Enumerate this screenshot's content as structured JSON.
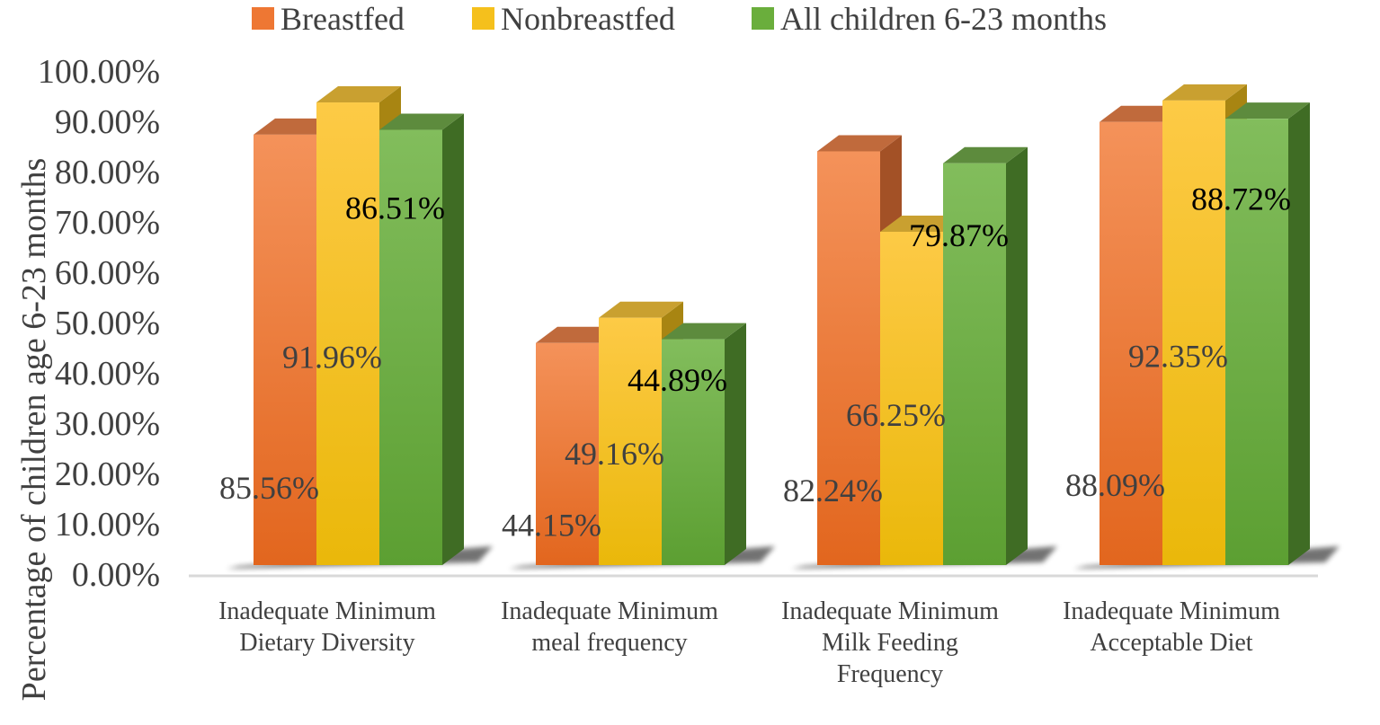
{
  "chart_data": {
    "type": "bar",
    "style": "3d-clustered-column",
    "title": "",
    "xlabel": "",
    "ylabel": "Percentage of children age 6-23 months",
    "ylim": [
      0,
      100
    ],
    "y_ticks": [
      "0.00%",
      "10.00%",
      "20.00%",
      "30.00%",
      "40.00%",
      "50.00%",
      "60.00%",
      "70.00%",
      "80.00%",
      "90.00%",
      "100.00%"
    ],
    "categories": [
      [
        "Inadequate Minimum",
        "Dietary Diversity"
      ],
      [
        "Inadequate Minimum",
        "meal frequency"
      ],
      [
        "Inadequate Minimum",
        "Milk Feeding",
        "Frequency"
      ],
      [
        "Inadequate Minimum",
        "Acceptable Diet"
      ]
    ],
    "legend_position": "top",
    "series": [
      {
        "name": "Breastfed",
        "color": "#ee7733",
        "values": [
          85.56,
          44.15,
          82.24,
          88.09
        ],
        "labels": [
          "85.56%",
          "44.15%",
          "82.24%",
          "88.09%"
        ]
      },
      {
        "name": "Nonbreastfed",
        "color": "#f5c01c",
        "values": [
          91.96,
          49.16,
          66.25,
          92.35
        ],
        "labels": [
          "91.96%",
          "49.16%",
          "66.25%",
          "92.35%"
        ]
      },
      {
        "name": "All children 6-23 months",
        "color": "#6aae3c",
        "values": [
          86.51,
          44.89,
          79.87,
          88.72
        ],
        "labels": [
          "86.51%",
          "44.89%",
          "79.87%",
          "88.72%"
        ]
      }
    ]
  },
  "colors": {
    "breastfed_light": "#f4925a",
    "breastfed_dark": "#e2661e",
    "breastfed_side": "#a35126",
    "breastfed_top": "#c06a3c",
    "nonbreastfed_light": "#fdca46",
    "nonbreastfed_dark": "#eab80a",
    "nonbreastfed_side": "#a88512",
    "nonbreastfed_top": "#c9a030",
    "allchildren_light": "#82bd5c",
    "allchildren_dark": "#5c9f32",
    "allchildren_side": "#3f6c24",
    "allchildren_top": "#5d8b3d",
    "floor": "#d9d9d9",
    "text": "#404040"
  }
}
